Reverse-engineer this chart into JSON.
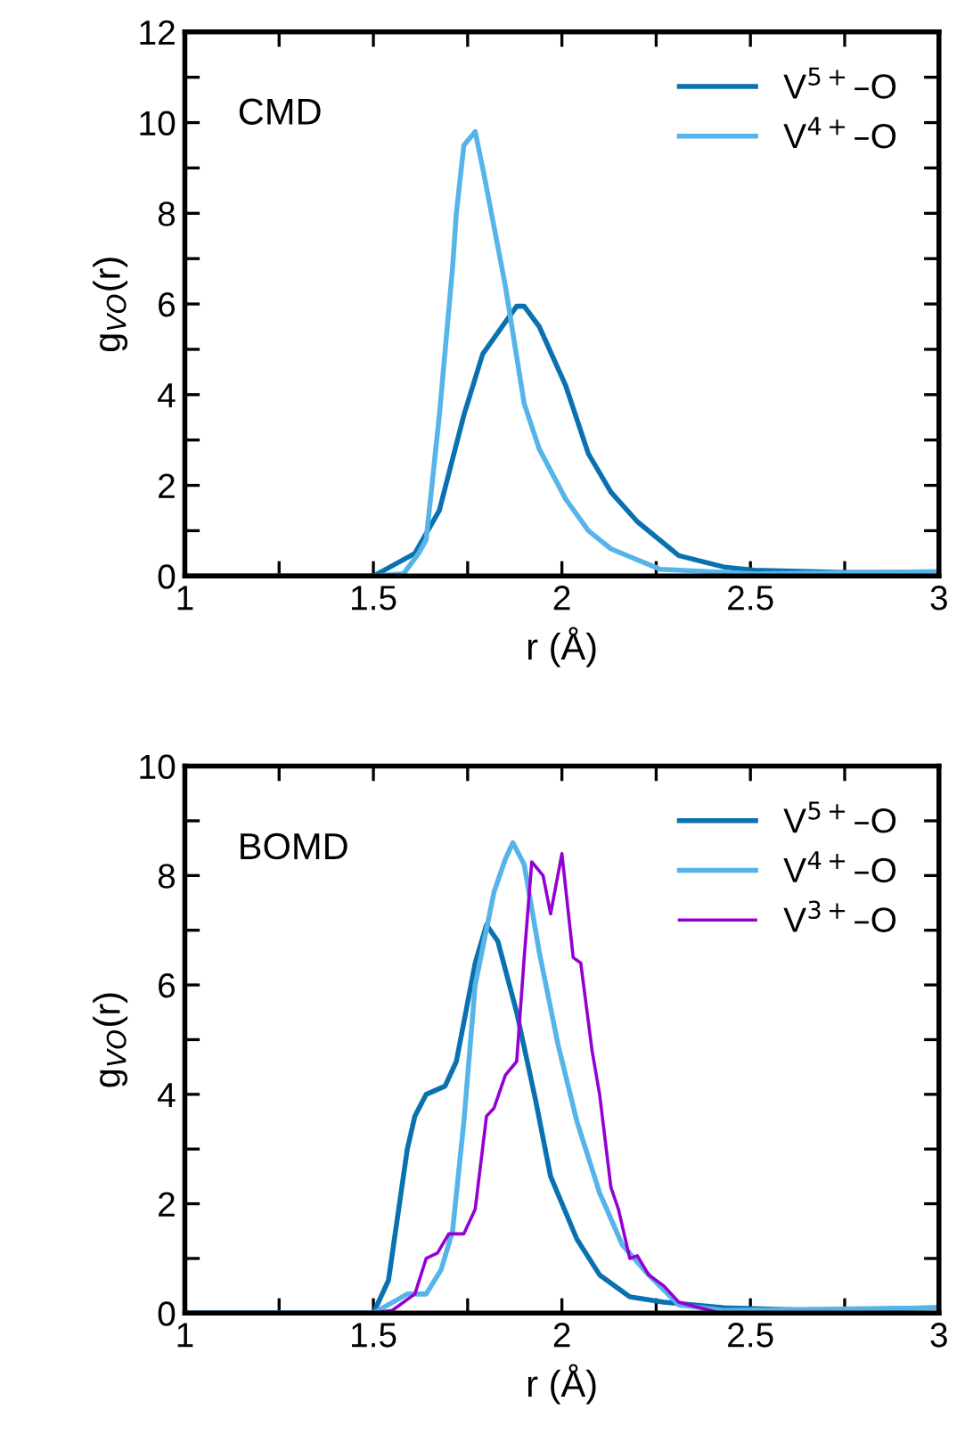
{
  "chart_data": [
    {
      "type": "line",
      "xlabel": "r (Å)",
      "ylabel": "g$_{VO}$(r)",
      "annotations": [
        "CMD"
      ],
      "legend": "top right",
      "grid": false,
      "marker": "none",
      "line_style": "solid",
      "xlim": [
        1,
        3
      ],
      "xticks": [
        1,
        {
          "value": 1.25,
          "label": null
        },
        1.5,
        {
          "value": 1.75,
          "label": null
        },
        2,
        {
          "value": 2.25,
          "label": null
        },
        2.5,
        {
          "value": 2.75,
          "label": null
        },
        3
      ],
      "ylim": [
        0,
        12
      ],
      "yticks": [
        0,
        {
          "value": 1,
          "label": null
        },
        2,
        {
          "value": 3,
          "label": null
        },
        4,
        {
          "value": 5,
          "label": null
        },
        6,
        {
          "value": 7,
          "label": null
        },
        8,
        {
          "value": 9,
          "label": null
        },
        10,
        {
          "value": 11,
          "label": null
        },
        12
      ],
      "series": [
        {
          "name": "V$^{5+}$–O",
          "color": "#0a71b0",
          "x": [
            1.0,
            1.5,
            1.61,
            1.675,
            1.74,
            1.79,
            1.85,
            1.88,
            1.9,
            1.94,
            2.01,
            2.07,
            2.13,
            2.2,
            2.31,
            2.43,
            2.51,
            2.75,
            3.0
          ],
          "values": [
            0,
            0,
            0.5,
            1.45,
            3.55,
            4.9,
            5.6,
            5.95,
            5.95,
            5.5,
            4.2,
            2.7,
            1.85,
            1.2,
            0.45,
            0.2,
            0.13,
            0.08,
            0.08
          ]
        },
        {
          "name": "V$^{4+}$–O",
          "color": "#56b4e9",
          "x": [
            1.0,
            1.5,
            1.58,
            1.62,
            1.64,
            1.675,
            1.71,
            1.72,
            1.74,
            1.77,
            1.79,
            1.82,
            1.85,
            1.9,
            1.94,
            2.01,
            2.07,
            2.13,
            2.26,
            2.51,
            3.0
          ],
          "values": [
            0,
            0,
            0.05,
            0.5,
            0.8,
            3.55,
            6.8,
            8.0,
            9.5,
            9.8,
            9.0,
            7.7,
            6.4,
            3.8,
            2.8,
            1.7,
            1.0,
            0.6,
            0.15,
            0.05,
            0.1
          ]
        }
      ]
    },
    {
      "type": "line",
      "xlabel": "r (Å)",
      "ylabel": "g$_{VO}$(r)",
      "annotations": [
        "BOMD"
      ],
      "legend": "top right",
      "grid": false,
      "marker": "none",
      "line_style": "solid",
      "xlim": [
        1,
        3
      ],
      "xticks": [
        1,
        {
          "value": 1.25,
          "label": null
        },
        1.5,
        {
          "value": 1.75,
          "label": null
        },
        2,
        {
          "value": 2.25,
          "label": null
        },
        2.5,
        {
          "value": 2.75,
          "label": null
        },
        3
      ],
      "ylim": [
        0,
        10
      ],
      "yticks": [
        0,
        {
          "value": 1,
          "label": null
        },
        2,
        {
          "value": 3,
          "label": null
        },
        4,
        {
          "value": 5,
          "label": null
        },
        6,
        {
          "value": 7,
          "label": null
        },
        8,
        {
          "value": 9,
          "label": null
        },
        10
      ],
      "series": [
        {
          "name": "V$^{5+}$–O",
          "color": "#0a71b0",
          "x": [
            1.0,
            1.5,
            1.54,
            1.59,
            1.61,
            1.64,
            1.69,
            1.72,
            1.77,
            1.8,
            1.83,
            1.88,
            1.93,
            1.97,
            2.04,
            2.1,
            2.18,
            2.27,
            2.43,
            2.67,
            3.0
          ],
          "values": [
            0,
            0,
            0.6,
            3.0,
            3.6,
            4.0,
            4.15,
            4.6,
            6.4,
            7.1,
            6.8,
            5.5,
            3.9,
            2.5,
            1.35,
            0.7,
            0.3,
            0.2,
            0.1,
            0.05,
            0.1
          ]
        },
        {
          "name": "V$^{4+}$–O",
          "color": "#56b4e9",
          "x": [
            1.0,
            1.5,
            1.59,
            1.64,
            1.68,
            1.71,
            1.74,
            1.77,
            1.82,
            1.85,
            1.87,
            1.9,
            1.94,
            1.99,
            2.04,
            2.1,
            2.16,
            2.23,
            2.31,
            2.43,
            3.0
          ],
          "values": [
            0,
            0,
            0.35,
            0.35,
            0.8,
            1.5,
            3.5,
            6.0,
            7.7,
            8.3,
            8.6,
            8.2,
            6.6,
            4.9,
            3.5,
            2.2,
            1.25,
            0.7,
            0.15,
            0.05,
            0.1
          ]
        },
        {
          "name": "V$^{3+}$–O",
          "color": "#9400d3",
          "x": [
            1.5,
            1.55,
            1.61,
            1.64,
            1.67,
            1.7,
            1.74,
            1.77,
            1.8,
            1.82,
            1.85,
            1.88,
            1.9,
            1.92,
            1.95,
            1.97,
            2.0,
            2.03,
            2.05,
            2.08,
            2.1,
            2.13,
            2.15,
            2.18,
            2.2,
            2.23,
            2.27,
            2.31,
            2.42,
            2.5
          ],
          "values": [
            0,
            0.05,
            0.35,
            1.0,
            1.1,
            1.45,
            1.45,
            1.9,
            3.6,
            3.75,
            4.35,
            4.6,
            6.5,
            8.25,
            8.0,
            7.3,
            8.4,
            6.5,
            6.4,
            4.8,
            4.0,
            2.3,
            1.9,
            1.0,
            1.05,
            0.7,
            0.5,
            0.2,
            0.0,
            0.0
          ]
        }
      ]
    }
  ]
}
